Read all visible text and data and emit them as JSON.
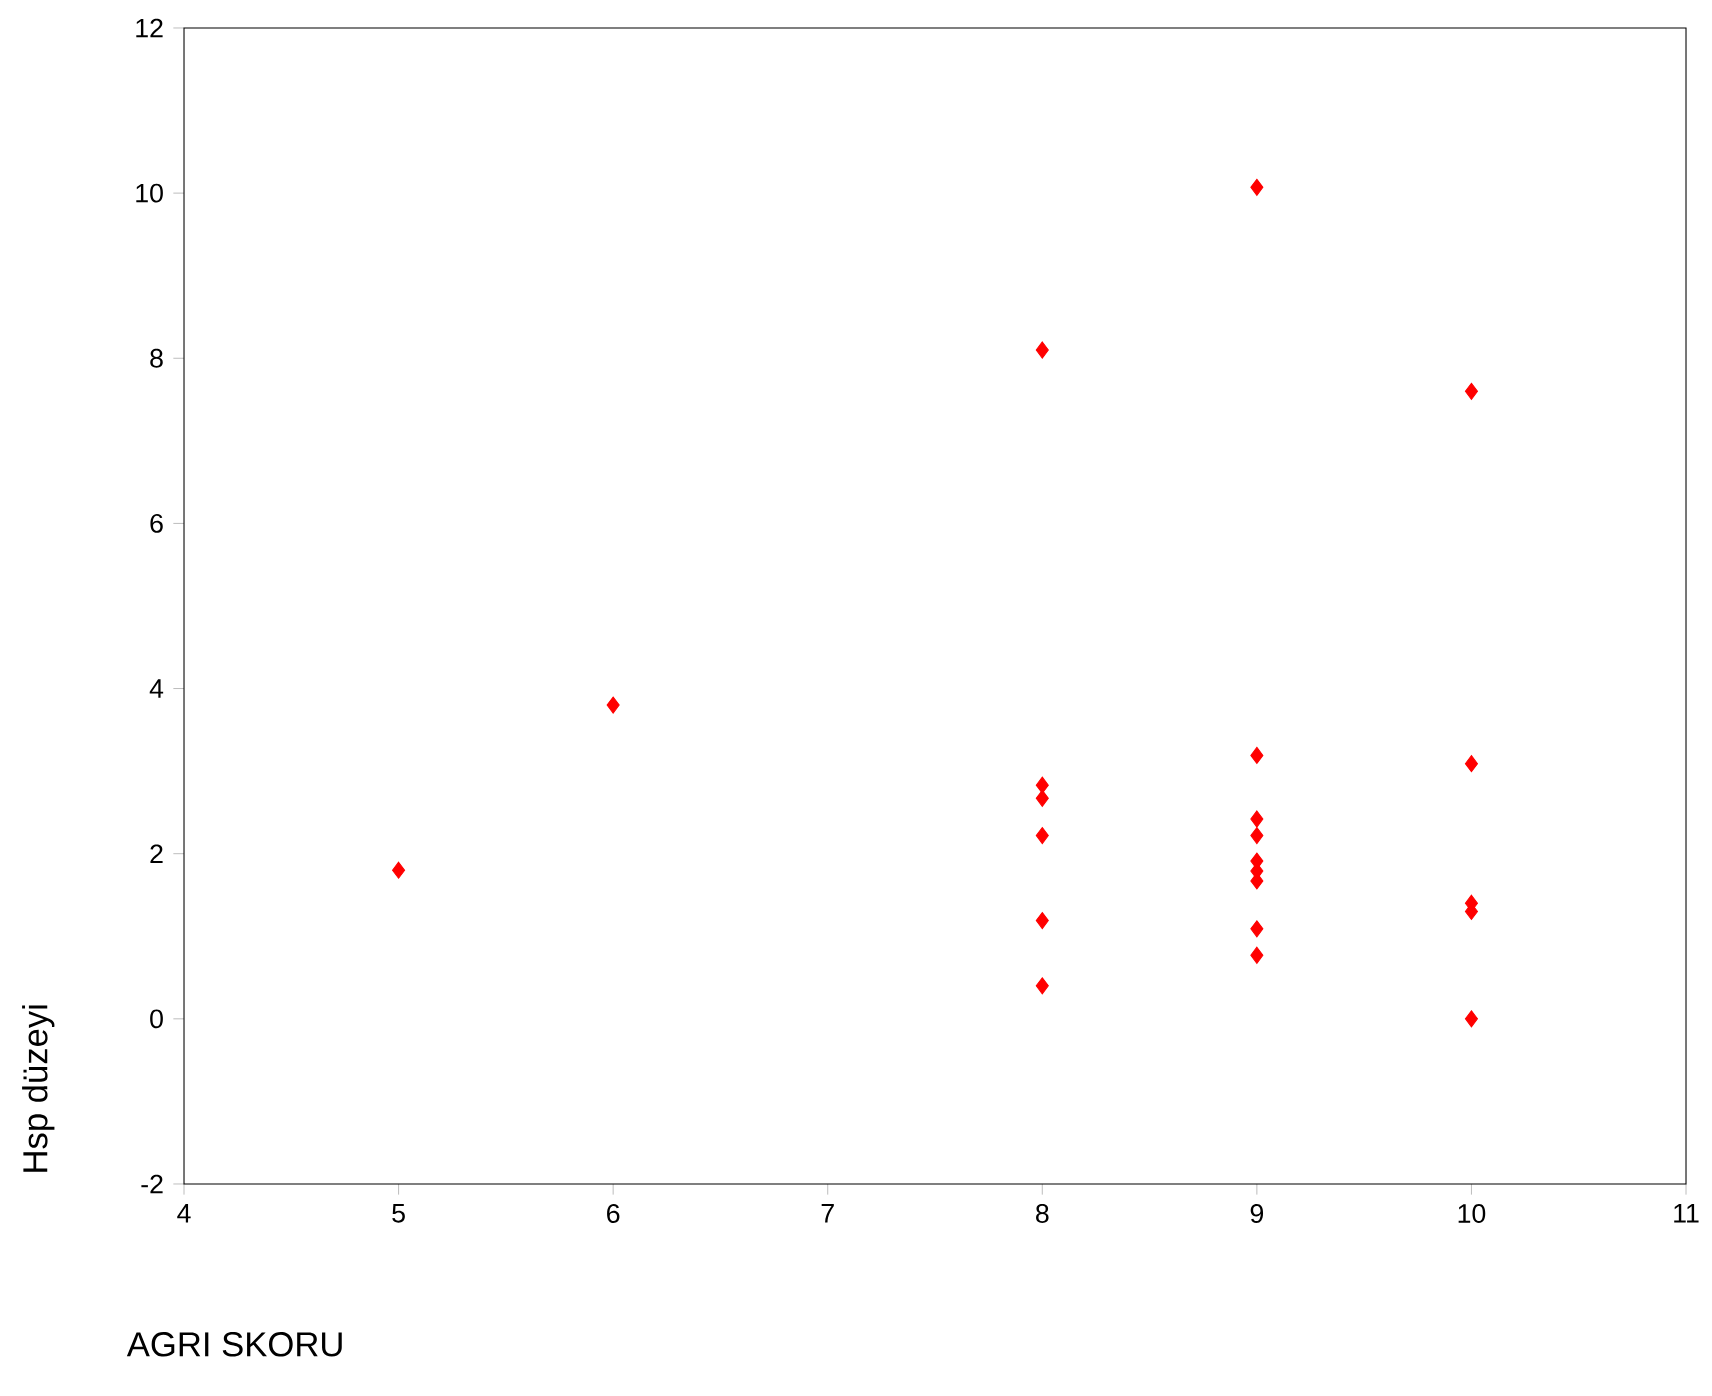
{
  "chart_data": {
    "type": "scatter",
    "xlabel": "AGRI SKORU",
    "ylabel": "Hsp düzeyi",
    "x": [
      5,
      6,
      8,
      8,
      8,
      8,
      8,
      8,
      9,
      9,
      9,
      9,
      9,
      9,
      9,
      9,
      9,
      10,
      10,
      10,
      10,
      10
    ],
    "values": [
      1.8,
      3.8,
      8.1,
      2.83,
      2.67,
      2.22,
      1.19,
      0.4,
      10.07,
      3.19,
      2.42,
      2.22,
      1.91,
      1.79,
      1.67,
      1.09,
      0.77,
      7.6,
      3.09,
      1.4,
      1.3,
      0
    ],
    "color": "#ff0000",
    "marker": "diamond",
    "xlim": [
      4,
      11
    ],
    "ylim": [
      -2,
      12
    ],
    "xticks": [
      4,
      5,
      6,
      7,
      8,
      9,
      10,
      11
    ],
    "yticks": [
      -2,
      0,
      2,
      4,
      6,
      8,
      10,
      12
    ]
  }
}
